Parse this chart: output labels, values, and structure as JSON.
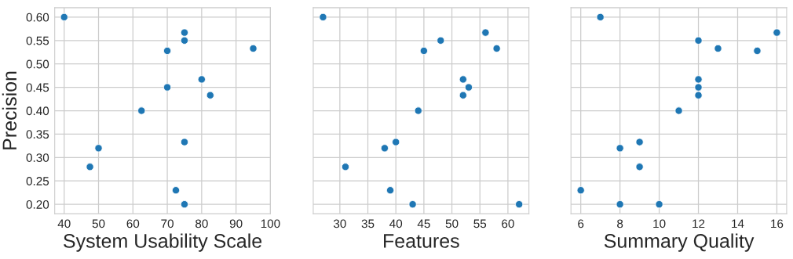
{
  "chart_data": [
    {
      "type": "scatter",
      "xlabel": "System Usability Scale",
      "ylabel": "Precision",
      "x": [
        40,
        75,
        75,
        95,
        70,
        80,
        70,
        82.5,
        62.5,
        75,
        50,
        47.5,
        72.5,
        75
      ],
      "series": [
        {
          "color": "#1f77b4",
          "values": [
            0.6,
            0.567,
            0.55,
            0.533,
            0.528,
            0.467,
            0.45,
            0.433,
            0.4,
            0.333,
            0.32,
            0.28,
            0.23,
            0.2
          ]
        }
      ],
      "xlim": [
        37.25,
        100
      ],
      "xticks": [
        40,
        50,
        60,
        70,
        80,
        90,
        100
      ],
      "ylim": [
        0.18,
        0.62
      ],
      "yticks": [
        {
          "value": 0.2,
          "label": "0.20"
        },
        {
          "value": 0.25,
          "label": "0.25"
        },
        {
          "value": 0.3,
          "label": "0.30"
        },
        {
          "value": 0.35,
          "label": "0.35"
        },
        {
          "value": 0.4,
          "label": "0.40"
        },
        {
          "value": 0.45,
          "label": "0.45"
        },
        {
          "value": 0.5,
          "label": "0.50"
        },
        {
          "value": 0.55,
          "label": "0.55"
        },
        {
          "value": 0.6,
          "label": "0.60"
        }
      ],
      "grid": true,
      "marker": "circle"
    },
    {
      "type": "scatter",
      "xlabel": "Features",
      "x": [
        27,
        56,
        48,
        58,
        45,
        52,
        53,
        52,
        44,
        40,
        38,
        31,
        39,
        43,
        62
      ],
      "series": [
        {
          "color": "#1f77b4",
          "values": [
            0.6,
            0.567,
            0.55,
            0.533,
            0.528,
            0.467,
            0.45,
            0.433,
            0.4,
            0.333,
            0.32,
            0.28,
            0.23,
            0.2,
            0.2
          ]
        }
      ],
      "xlim": [
        25.25,
        63.75
      ],
      "xticks": [
        30,
        35,
        40,
        45,
        50,
        55,
        60
      ],
      "ylim": [
        0.18,
        0.62
      ],
      "yticks": [
        {
          "value": 0.2,
          "label": null
        },
        {
          "value": 0.25,
          "label": null
        },
        {
          "value": 0.3,
          "label": null
        },
        {
          "value": 0.35,
          "label": null
        },
        {
          "value": 0.4,
          "label": null
        },
        {
          "value": 0.45,
          "label": null
        },
        {
          "value": 0.5,
          "label": null
        },
        {
          "value": 0.55,
          "label": null
        },
        {
          "value": 0.6,
          "label": null
        }
      ],
      "tick_labels": "x",
      "grid": true,
      "marker": "circle"
    },
    {
      "type": "scatter",
      "xlabel": "Summary Quality",
      "x": [
        7,
        16,
        12,
        13,
        15,
        12,
        12,
        12,
        11,
        9,
        8,
        9,
        6,
        8,
        10
      ],
      "series": [
        {
          "color": "#1f77b4",
          "values": [
            0.6,
            0.567,
            0.55,
            0.533,
            0.528,
            0.467,
            0.45,
            0.433,
            0.4,
            0.333,
            0.32,
            0.28,
            0.23,
            0.2,
            0.2
          ]
        }
      ],
      "xlim": [
        5.5,
        16.5
      ],
      "xticks": [
        6,
        8,
        10,
        12,
        14,
        16
      ],
      "ylim": [
        0.18,
        0.62
      ],
      "yticks": [
        {
          "value": 0.2,
          "label": null
        },
        {
          "value": 0.25,
          "label": null
        },
        {
          "value": 0.3,
          "label": null
        },
        {
          "value": 0.35,
          "label": null
        },
        {
          "value": 0.4,
          "label": null
        },
        {
          "value": 0.45,
          "label": null
        },
        {
          "value": 0.5,
          "label": null
        },
        {
          "value": 0.55,
          "label": null
        },
        {
          "value": 0.6,
          "label": null
        }
      ],
      "tick_labels": "x",
      "grid": true,
      "marker": "circle"
    }
  ]
}
